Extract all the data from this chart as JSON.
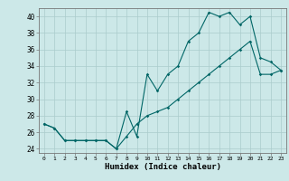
{
  "xlabel": "Humidex (Indice chaleur)",
  "ylabel": "",
  "bg_color": "#cce8e8",
  "grid_color": "#aacccc",
  "line_color": "#006666",
  "xlim": [
    -0.5,
    23.5
  ],
  "ylim": [
    23.5,
    41
  ],
  "yticks": [
    24,
    26,
    28,
    30,
    32,
    34,
    36,
    38,
    40
  ],
  "xticks": [
    0,
    1,
    2,
    3,
    4,
    5,
    6,
    7,
    8,
    9,
    10,
    11,
    12,
    13,
    14,
    15,
    16,
    17,
    18,
    19,
    20,
    21,
    22,
    23
  ],
  "line1_x": [
    0,
    1,
    2,
    3,
    4,
    5,
    6,
    7,
    8,
    9,
    10,
    11,
    12,
    13,
    14,
    15,
    16,
    17,
    18,
    19,
    20,
    21,
    22,
    23
  ],
  "line1_y": [
    27,
    26.5,
    25,
    25,
    25,
    25,
    25,
    24,
    28.5,
    25.5,
    33,
    31,
    33,
    34,
    37,
    38,
    40.5,
    40,
    40.5,
    39,
    40,
    35,
    34.5,
    33.5
  ],
  "line2_x": [
    0,
    1,
    2,
    3,
    4,
    5,
    6,
    7,
    8,
    9,
    10,
    11,
    12,
    13,
    14,
    15,
    16,
    17,
    18,
    19,
    20,
    21,
    22,
    23
  ],
  "line2_y": [
    27,
    26.5,
    25,
    25,
    25,
    25,
    25,
    24,
    25.5,
    27,
    28,
    28.5,
    29,
    30,
    31,
    32,
    33,
    34,
    35,
    36,
    37,
    33,
    33,
    33.5
  ]
}
